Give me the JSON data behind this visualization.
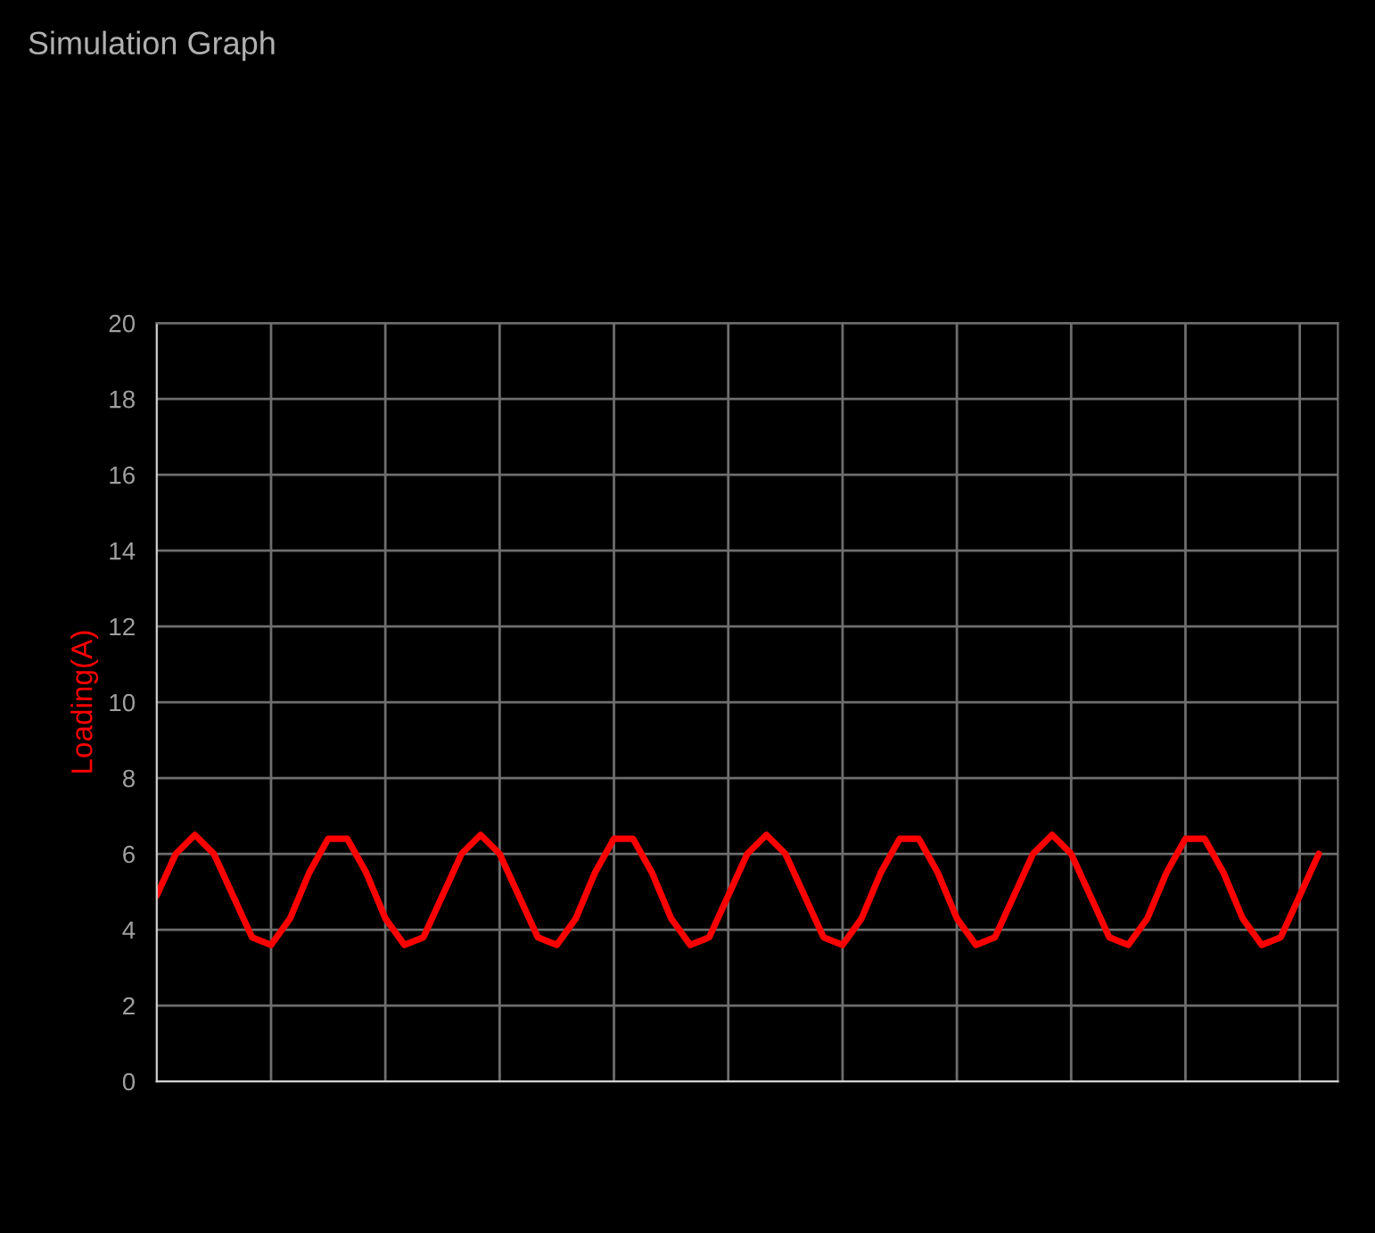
{
  "chart_data": {
    "type": "line",
    "title": "Simulation Graph",
    "ylabel": "Loading(A)",
    "categories": [
      null,
      null,
      null,
      null,
      null,
      null,
      null,
      null,
      null,
      null,
      null,
      null,
      null,
      null,
      null,
      null,
      null,
      null,
      null,
      null,
      null,
      null,
      null,
      null,
      null,
      null,
      null,
      null,
      null,
      null,
      null,
      null,
      null,
      null,
      null,
      null,
      null,
      null,
      null,
      null,
      null,
      null,
      null,
      null,
      null,
      null,
      null,
      null,
      null,
      null,
      null,
      null,
      null,
      null,
      null,
      null,
      null,
      null,
      null,
      null,
      null,
      null,
      null
    ],
    "series": [
      {
        "color": "#ff0000",
        "values": [
          4.9,
          6.0,
          6.5,
          6.0,
          4.9,
          3.8,
          3.6,
          4.3,
          5.5,
          6.4,
          6.4,
          5.5,
          4.3,
          3.6,
          3.8,
          4.9,
          6.0,
          6.5,
          6.0,
          4.9,
          3.8,
          3.6,
          4.3,
          5.5,
          6.4,
          6.4,
          5.5,
          4.3,
          3.6,
          3.8,
          4.9,
          6.0,
          6.5,
          6.0,
          4.9,
          3.8,
          3.6,
          4.3,
          5.5,
          6.4,
          6.4,
          5.5,
          4.3,
          3.6,
          3.8,
          4.9,
          6.0,
          6.5,
          6.0,
          4.9,
          3.8,
          3.6,
          4.3,
          5.5,
          6.4,
          6.4,
          5.5,
          4.3,
          3.6,
          3.8,
          4.9,
          6.0,
          null
        ]
      }
    ],
    "ylim": [
      0,
      20
    ],
    "yticks": [
      0,
      2,
      4,
      6,
      8,
      10,
      12,
      14,
      16,
      18,
      20
    ],
    "grid": true,
    "tick_labels": "y",
    "line_style": "solid",
    "marker": "none"
  }
}
